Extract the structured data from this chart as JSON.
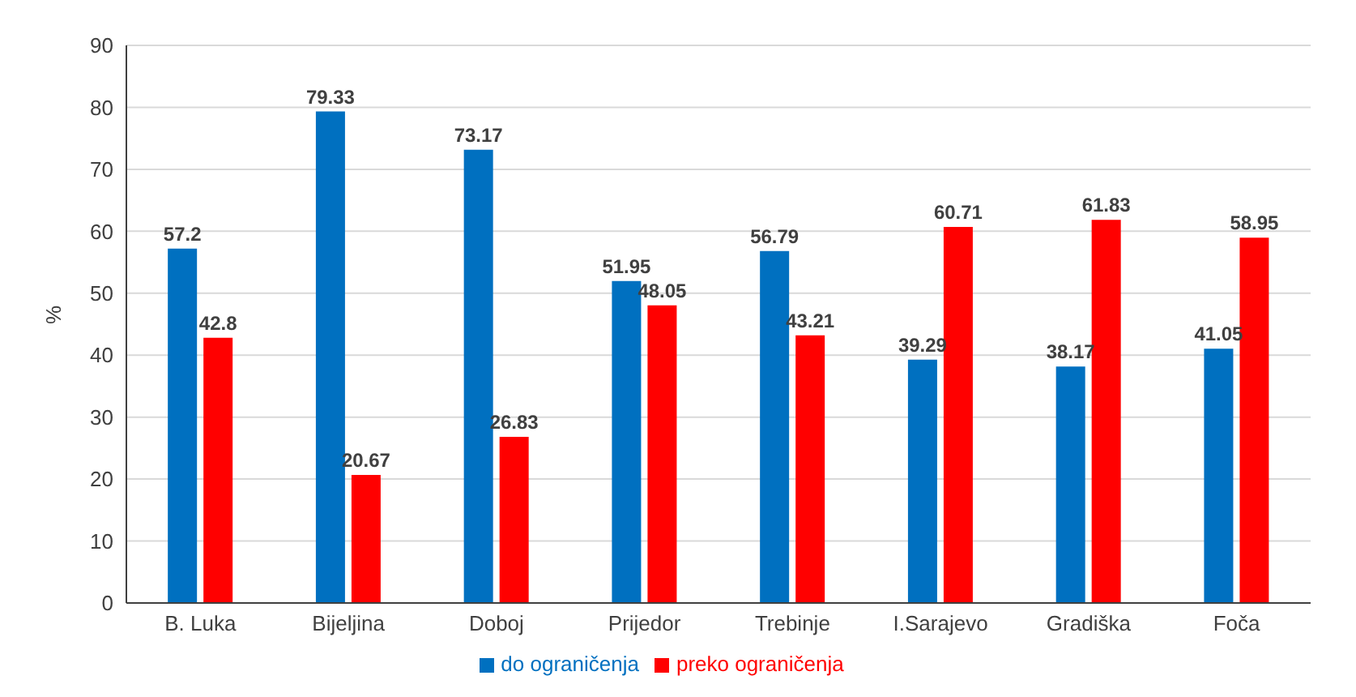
{
  "chart_data": {
    "type": "bar",
    "ylabel": "%",
    "categories": [
      "B. Luka",
      "Bijeljina",
      "Doboj",
      "Prijedor",
      "Trebinje",
      "I.Sarajevo",
      "Gradiška",
      "Foča"
    ],
    "series": [
      {
        "name": "do ograničenja",
        "color": "#0070c0",
        "values": [
          57.2,
          79.33,
          73.17,
          51.95,
          56.79,
          39.29,
          38.17,
          41.05
        ]
      },
      {
        "name": "preko ograničenja",
        "color": "#ff0000",
        "values": [
          42.8,
          20.67,
          26.83,
          48.05,
          43.21,
          60.71,
          61.83,
          58.95
        ]
      }
    ],
    "ylim": [
      0,
      90
    ],
    "yticks": [
      0,
      10,
      20,
      30,
      40,
      50,
      60,
      70,
      80,
      90
    ],
    "grid": "y",
    "legend": "bottom",
    "data_labels": true
  }
}
